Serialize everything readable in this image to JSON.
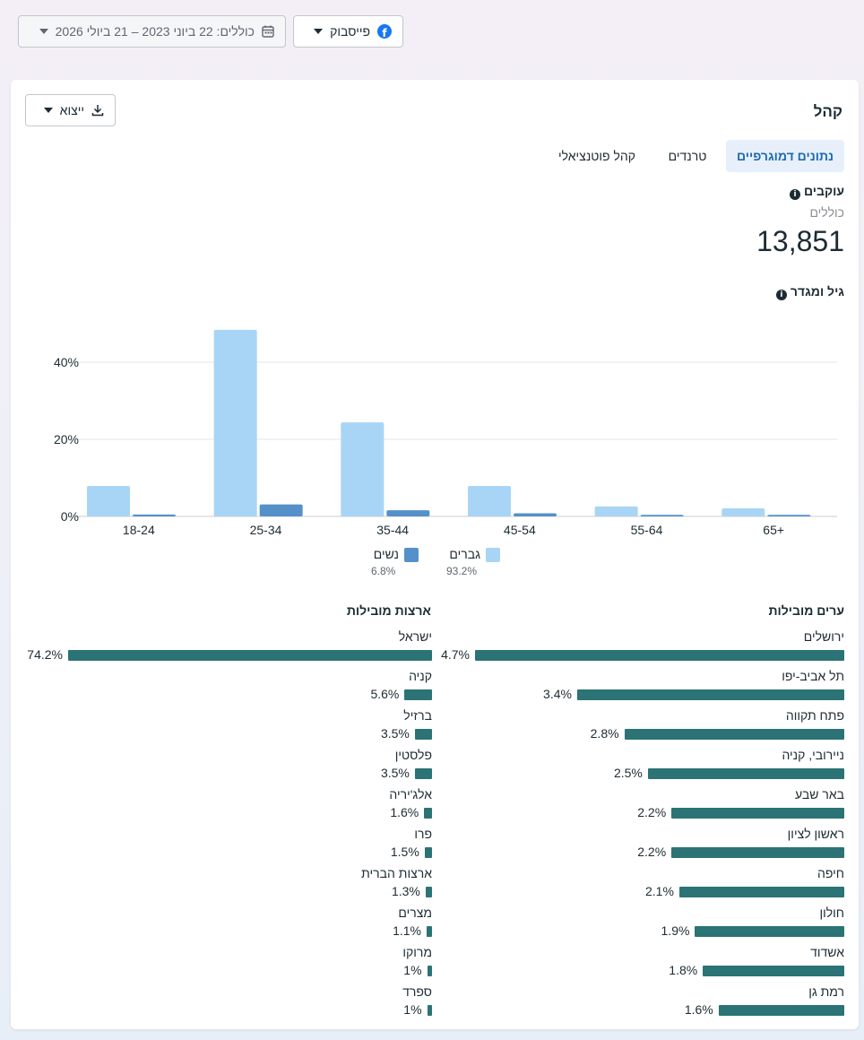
{
  "filters": {
    "platform": {
      "label": "פייסבוק",
      "icon": "facebook-icon"
    },
    "date_range": {
      "label": "כוללים: 22 ביוני 2023 – 21 ביולי 2026",
      "icon": "calendar-icon"
    }
  },
  "card": {
    "title": "קהל",
    "export_label": "ייצוא",
    "tabs": [
      "נתונים דמוגרפיים",
      "טרנדים",
      "קהל פוטנציאלי"
    ],
    "followers": {
      "title": "עוקבים",
      "subtitle": "כוללים",
      "value": "13,851"
    },
    "age_gender_title": "גיל ומגדר"
  },
  "legend": [
    {
      "name": "גברים",
      "pct": "93.2%",
      "color": "#a8d5f5"
    },
    {
      "name": "נשים",
      "pct": "6.8%",
      "color": "#5591c9"
    }
  ],
  "chart_data": {
    "type": "bar",
    "categories": [
      "18-24",
      "25-34",
      "35-44",
      "45-54",
      "55-64",
      "65+"
    ],
    "series": [
      {
        "name": "גברים",
        "values": [
          7.9,
          48.4,
          24.4,
          7.9,
          2.6,
          2.1
        ]
      },
      {
        "name": "נשים",
        "values": [
          0.5,
          3.1,
          1.6,
          0.8,
          0.4,
          0.4
        ]
      }
    ],
    "y_ticks": [
      "0%",
      "20%",
      "40%"
    ],
    "ylim": [
      0,
      50
    ],
    "grid": true
  },
  "top_cities": {
    "title": "ערים מובילות",
    "items": [
      {
        "name": "ירושלים",
        "pct": "4.7%",
        "value": 4.7
      },
      {
        "name": "תל אביב-יפו",
        "pct": "3.4%",
        "value": 3.4
      },
      {
        "name": "פתח תקווה",
        "pct": "2.8%",
        "value": 2.8
      },
      {
        "name": "ניירובי, קניה",
        "pct": "2.5%",
        "value": 2.5
      },
      {
        "name": "באר שבע",
        "pct": "2.2%",
        "value": 2.2
      },
      {
        "name": "ראשון לציון",
        "pct": "2.2%",
        "value": 2.2
      },
      {
        "name": "חיפה",
        "pct": "2.1%",
        "value": 2.1
      },
      {
        "name": "חולון",
        "pct": "1.9%",
        "value": 1.9
      },
      {
        "name": "אשדוד",
        "pct": "1.8%",
        "value": 1.8
      },
      {
        "name": "רמת גן",
        "pct": "1.6%",
        "value": 1.6
      }
    ]
  },
  "top_countries": {
    "title": "ארצות מובילות",
    "items": [
      {
        "name": "ישראל",
        "pct": "74.2%",
        "value": 74.2
      },
      {
        "name": "קניה",
        "pct": "5.6%",
        "value": 5.6
      },
      {
        "name": "ברזיל",
        "pct": "3.5%",
        "value": 3.5
      },
      {
        "name": "פלסטין",
        "pct": "3.5%",
        "value": 3.5
      },
      {
        "name": "אלג'יריה",
        "pct": "1.6%",
        "value": 1.6
      },
      {
        "name": "פרו",
        "pct": "1.5%",
        "value": 1.5
      },
      {
        "name": "ארצות הברית",
        "pct": "1.3%",
        "value": 1.3
      },
      {
        "name": "מצרים",
        "pct": "1.1%",
        "value": 1.1
      },
      {
        "name": "מרוקו",
        "pct": "1%",
        "value": 1.0
      },
      {
        "name": "ספרד",
        "pct": "1%",
        "value": 1.0
      }
    ]
  }
}
